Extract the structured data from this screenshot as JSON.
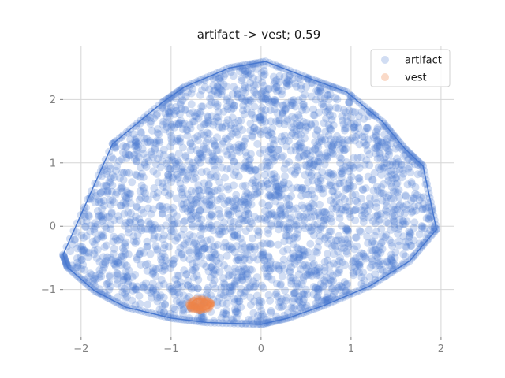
{
  "chart_data": {
    "type": "scatter",
    "title": "artifact -> vest; 0.59",
    "xlabel": "",
    "ylabel": "",
    "xlim": [
      -2.2,
      2.15
    ],
    "ylim": [
      -1.75,
      2.85
    ],
    "xticks": [
      -2,
      -1,
      0,
      1,
      2
    ],
    "yticks": [
      -1,
      0,
      1,
      2
    ],
    "xtick_labels": [
      "−2",
      "−1",
      "0",
      "1",
      "2"
    ],
    "ytick_labels": [
      "−1",
      "0",
      "1",
      "2"
    ],
    "grid": true,
    "legend_placement": "top-right",
    "series": [
      {
        "name": "artifact",
        "color": "#4878cf",
        "point_alpha": 0.25,
        "hull": [
          [
            0.05,
            2.6
          ],
          [
            0.6,
            2.3
          ],
          [
            0.95,
            2.12
          ],
          [
            1.35,
            1.65
          ],
          [
            1.6,
            1.22
          ],
          [
            1.8,
            0.95
          ],
          [
            1.95,
            -0.05
          ],
          [
            1.65,
            -0.55
          ],
          [
            1.2,
            -0.95
          ],
          [
            0.7,
            -1.25
          ],
          [
            0.3,
            -1.45
          ],
          [
            0.0,
            -1.55
          ],
          [
            -0.6,
            -1.52
          ],
          [
            -1.0,
            -1.45
          ],
          [
            -1.5,
            -1.28
          ],
          [
            -1.85,
            -1.02
          ],
          [
            -2.15,
            -0.65
          ],
          [
            -2.2,
            -0.45
          ],
          [
            -1.65,
            1.3
          ],
          [
            -1.1,
            1.95
          ],
          [
            -0.85,
            2.2
          ],
          [
            -0.35,
            2.5
          ]
        ]
      },
      {
        "name": "vest",
        "color": "#ee854a",
        "point_alpha": 0.3,
        "hull": [
          [
            -0.72,
            -1.15
          ],
          [
            -0.62,
            -1.16
          ],
          [
            -0.55,
            -1.22
          ],
          [
            -0.58,
            -1.3
          ],
          [
            -0.68,
            -1.33
          ],
          [
            -0.78,
            -1.3
          ],
          [
            -0.8,
            -1.22
          ]
        ]
      }
    ]
  }
}
